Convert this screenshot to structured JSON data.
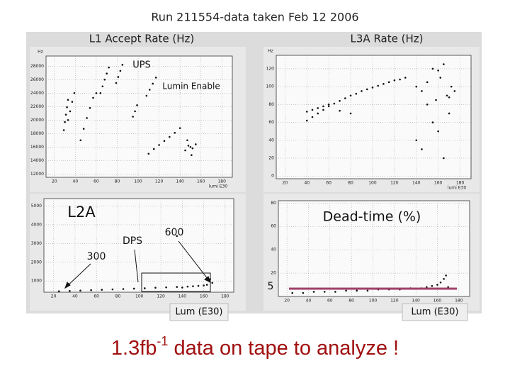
{
  "header": {
    "title": "Run 211554-data taken Feb 12 2006",
    "left_label": "L1 Accept Rate (Hz)",
    "right_label": "L3A Rate (Hz)"
  },
  "panels": [
    {
      "unit": "Hz",
      "x_label": "lumi E30",
      "xlim": [
        12,
        190
      ],
      "ylim": [
        11500,
        29500
      ],
      "xticks": [
        20,
        40,
        60,
        80,
        100,
        120,
        140,
        160,
        180
      ],
      "yticks": [
        12000,
        14000,
        16000,
        18000,
        20000,
        22000,
        24000,
        26000,
        28000
      ],
      "points": {
        "x": [
          29,
          30,
          31,
          32,
          33,
          33,
          35,
          37,
          39,
          45,
          48,
          51,
          54,
          57,
          60,
          64,
          66,
          68,
          70,
          72,
          79,
          81,
          83,
          85,
          95,
          97,
          99,
          108,
          111,
          114,
          117,
          110,
          115,
          120,
          125,
          130,
          135,
          140,
          145,
          148,
          150,
          152,
          155,
          147,
          151
        ],
        "y": [
          18500,
          19700,
          20800,
          21900,
          23000,
          20000,
          21300,
          22700,
          24000,
          17000,
          18700,
          20300,
          21800,
          23300,
          24000,
          24000,
          25000,
          26000,
          26900,
          27800,
          25500,
          26400,
          27300,
          28200,
          20500,
          21300,
          22200,
          23600,
          24500,
          25400,
          26300,
          15000,
          15700,
          16300,
          16900,
          17500,
          18100,
          18800,
          15500,
          16200,
          16000,
          15800,
          16400,
          17000,
          14800
        ]
      }
    },
    {
      "unit": "Hz",
      "x_label": "lumi E30",
      "xlim": [
        12,
        190
      ],
      "ylim": [
        -3,
        135
      ],
      "xticks": [
        20,
        40,
        60,
        80,
        100,
        120,
        140,
        160,
        180
      ],
      "yticks": [
        0,
        20,
        40,
        60,
        80,
        100,
        120
      ],
      "points": {
        "x": [
          40,
          45,
          50,
          55,
          60,
          65,
          70,
          75,
          80,
          85,
          90,
          95,
          100,
          105,
          110,
          115,
          120,
          125,
          130,
          40,
          45,
          50,
          55,
          60,
          70,
          80,
          140,
          145,
          150,
          155,
          160,
          162,
          165,
          168,
          170,
          172,
          175,
          150,
          155,
          160,
          140,
          145,
          158,
          165,
          170
        ],
        "y": [
          62,
          66,
          70,
          74,
          78,
          81,
          84,
          87,
          90,
          92,
          95,
          97,
          99,
          101,
          103,
          105,
          107,
          108,
          110,
          72,
          74,
          76,
          78,
          80,
          73,
          70,
          100,
          95,
          105,
          120,
          118,
          110,
          125,
          90,
          70,
          100,
          95,
          80,
          60,
          50,
          40,
          30,
          85,
          20,
          88
        ]
      }
    },
    {
      "xlim": [
        11,
        188
      ],
      "ylim": [
        400,
        5400
      ],
      "xticks": [
        20,
        40,
        60,
        80,
        100,
        120,
        140,
        160,
        180
      ],
      "yticks": [
        1000,
        2000,
        3000,
        4000,
        5000
      ],
      "points": {
        "x": [
          25,
          35,
          45,
          55,
          65,
          75,
          85,
          95,
          105,
          115,
          125,
          135,
          145,
          150,
          155,
          160,
          163,
          166,
          140,
          168,
          135
        ],
        "y": [
          450,
          470,
          490,
          510,
          530,
          550,
          570,
          590,
          610,
          640,
          660,
          680,
          700,
          720,
          740,
          760,
          800,
          1100,
          650,
          900,
          3400
        ]
      }
    },
    {
      "xlim": [
        12,
        190
      ],
      "ylim": [
        0,
        82
      ],
      "xticks": [
        20,
        40,
        60,
        80,
        100,
        120,
        140,
        160,
        180
      ],
      "yticks": [
        20,
        40,
        60,
        80
      ],
      "points": {
        "x": [
          25,
          35,
          45,
          55,
          65,
          75,
          85,
          95,
          105,
          115,
          125,
          135,
          145,
          150,
          155,
          160,
          163,
          166,
          170,
          168
        ],
        "y": [
          3,
          3,
          4,
          4,
          4,
          5,
          5,
          5,
          6,
          6,
          6,
          7,
          7,
          8,
          9,
          10,
          12,
          15,
          8,
          18
        ]
      }
    }
  ],
  "annotations": {
    "ups": "UPS",
    "lumin_enable": "Lumin Enable",
    "l2a": "L2A",
    "dps": "DPS",
    "v600": "600",
    "v300": "300",
    "dead_time": "Dead-time (%)",
    "v5": "5",
    "lum_left": "Lum (E30)",
    "lum_right": "Lum (E30)"
  },
  "footer": {
    "main": "1.3fb",
    "sup": "-1",
    "rest": " data on tape to analyze !"
  }
}
